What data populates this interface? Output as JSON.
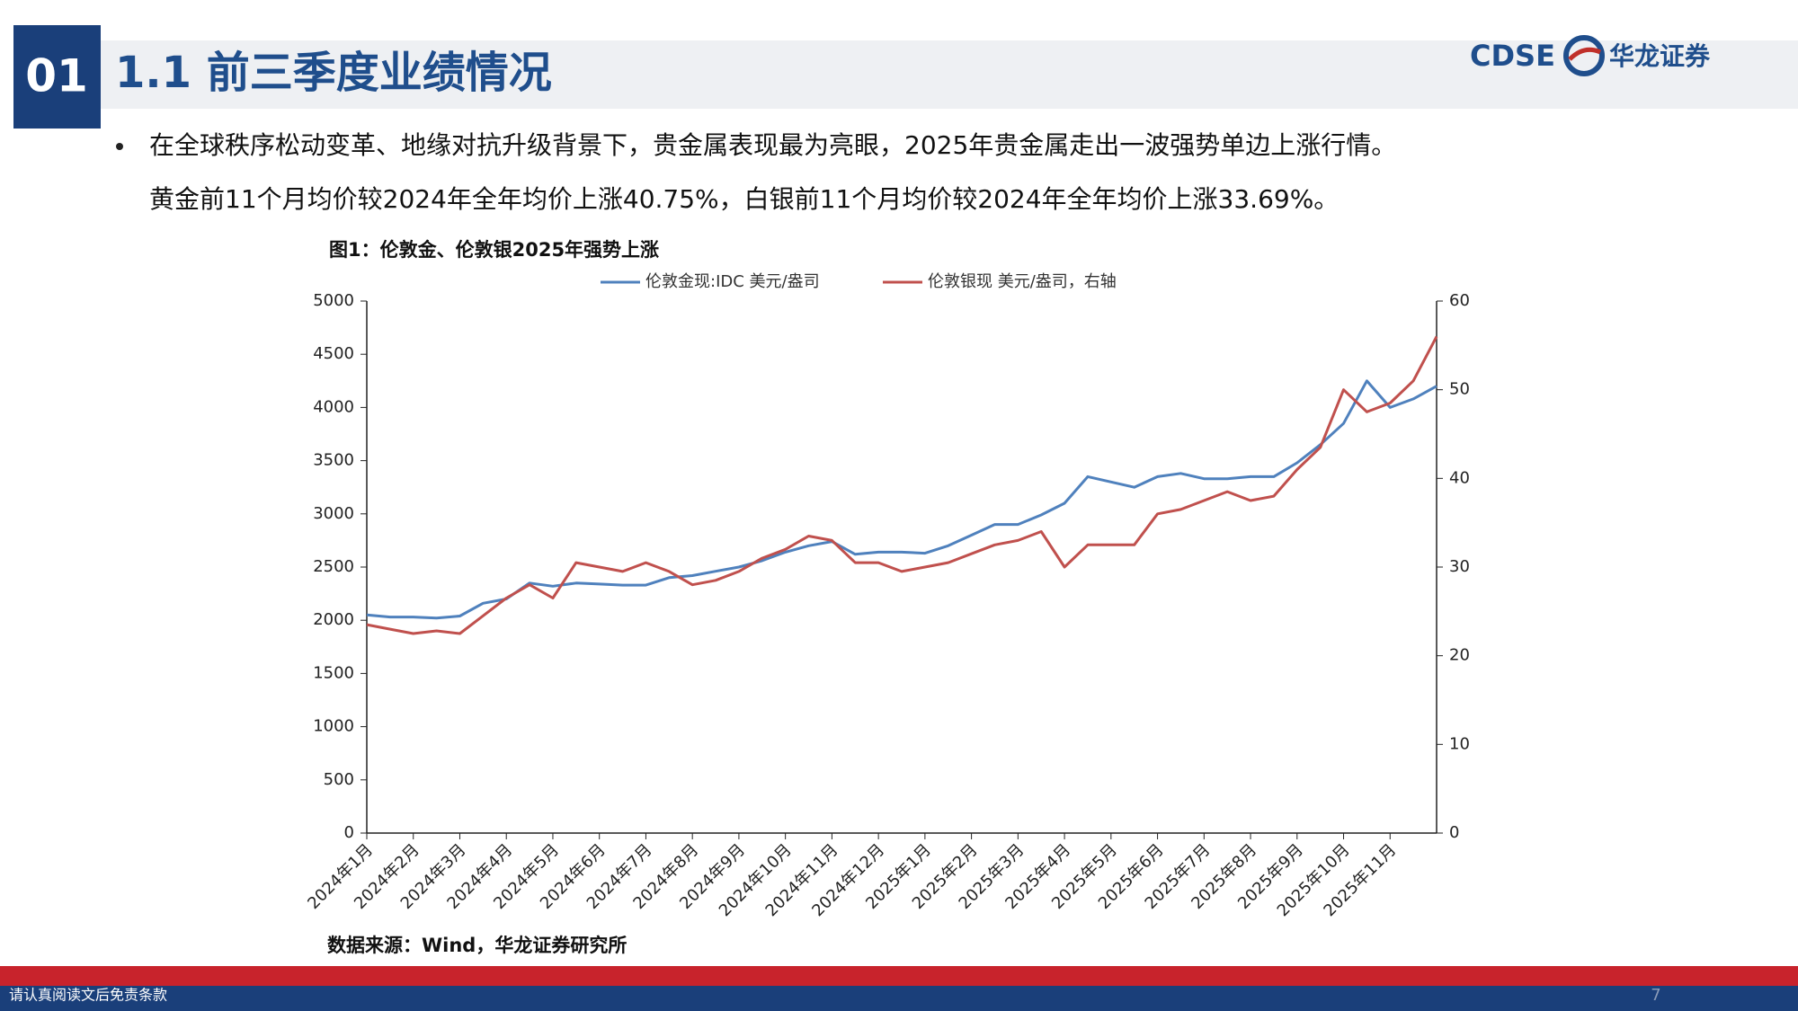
{
  "header": {
    "section_number": "01",
    "title": "1.1 前三季度业绩情况"
  },
  "logo": {
    "brand": "CDSE",
    "name": "华龙证券"
  },
  "bullet": {
    "lines": [
      "在全球秩序松动变革、地缘对抗升级背景下，贵金属表现最为亮眼，2025年贵金属走出一波强势单边上涨行情。",
      "黄金前11个月均价较2024年全年均价上涨40.75%，白银前11个月均价较2024年全年均价上涨33.69%。"
    ]
  },
  "chart_data": {
    "type": "line",
    "title": "图1：伦敦金、伦敦银2025年强势上涨",
    "source": "数据来源：Wind，华龙证券研究所",
    "categories": [
      "2024年1月",
      null,
      "2024年2月",
      null,
      "2024年3月",
      null,
      "2024年4月",
      null,
      "2024年5月",
      null,
      "2024年6月",
      null,
      "2024年7月",
      null,
      "2024年8月",
      null,
      "2024年9月",
      null,
      "2024年10月",
      null,
      "2024年11月",
      null,
      "2024年12月",
      null,
      "2025年1月",
      null,
      "2025年2月",
      null,
      "2025年3月",
      null,
      "2025年4月",
      null,
      "2025年5月",
      null,
      "2025年6月",
      null,
      "2025年7月",
      null,
      "2025年8月",
      null,
      "2025年9月",
      null,
      "2025年10月",
      null,
      "2025年11月",
      null,
      null
    ],
    "series": [
      {
        "name": "伦敦金现:IDC 美元/盎司",
        "color": "#4f81bd",
        "values": [
          2050,
          2030,
          2030,
          2020,
          2040,
          2160,
          2200,
          2350,
          2320,
          2350,
          2340,
          2330,
          2330,
          2400,
          2420,
          2460,
          2500,
          2560,
          2640,
          2700,
          2740,
          2620,
          2640,
          2640,
          2630,
          2700,
          2800,
          2900,
          2900,
          2990,
          3100,
          3350,
          3300,
          3250,
          3350,
          3380,
          3330,
          3330,
          3350,
          3350,
          3480,
          3650,
          3850,
          4250,
          4000,
          4080,
          4200
        ]
      },
      {
        "name": "伦敦银现 美元/盎司，右轴",
        "color": "#c0504d",
        "axis": "y2",
        "values": [
          23.5,
          23,
          22.5,
          22.8,
          22.5,
          24.5,
          26.5,
          28,
          26.5,
          30.5,
          30,
          29.5,
          30.5,
          29.5,
          28,
          28.5,
          29.5,
          31,
          32,
          33.5,
          33,
          30.5,
          30.5,
          29.5,
          30,
          30.5,
          31.5,
          32.5,
          33,
          34,
          30,
          32.5,
          32.5,
          32.5,
          36,
          36.5,
          37.5,
          38.5,
          37.5,
          38,
          41,
          43.5,
          50,
          47.5,
          48.5,
          51,
          56
        ]
      }
    ],
    "ylim": [
      0,
      5000
    ],
    "yticks": [
      0,
      500,
      1000,
      1500,
      2000,
      2500,
      3000,
      3500,
      4000,
      4500,
      5000
    ],
    "y2lim": [
      0,
      60
    ],
    "y2ticks": [
      0,
      10,
      20,
      30,
      40,
      50,
      60
    ],
    "grid": false
  },
  "footer": {
    "disclaimer": "请认真阅读文后免责条款",
    "page_number": 7
  }
}
